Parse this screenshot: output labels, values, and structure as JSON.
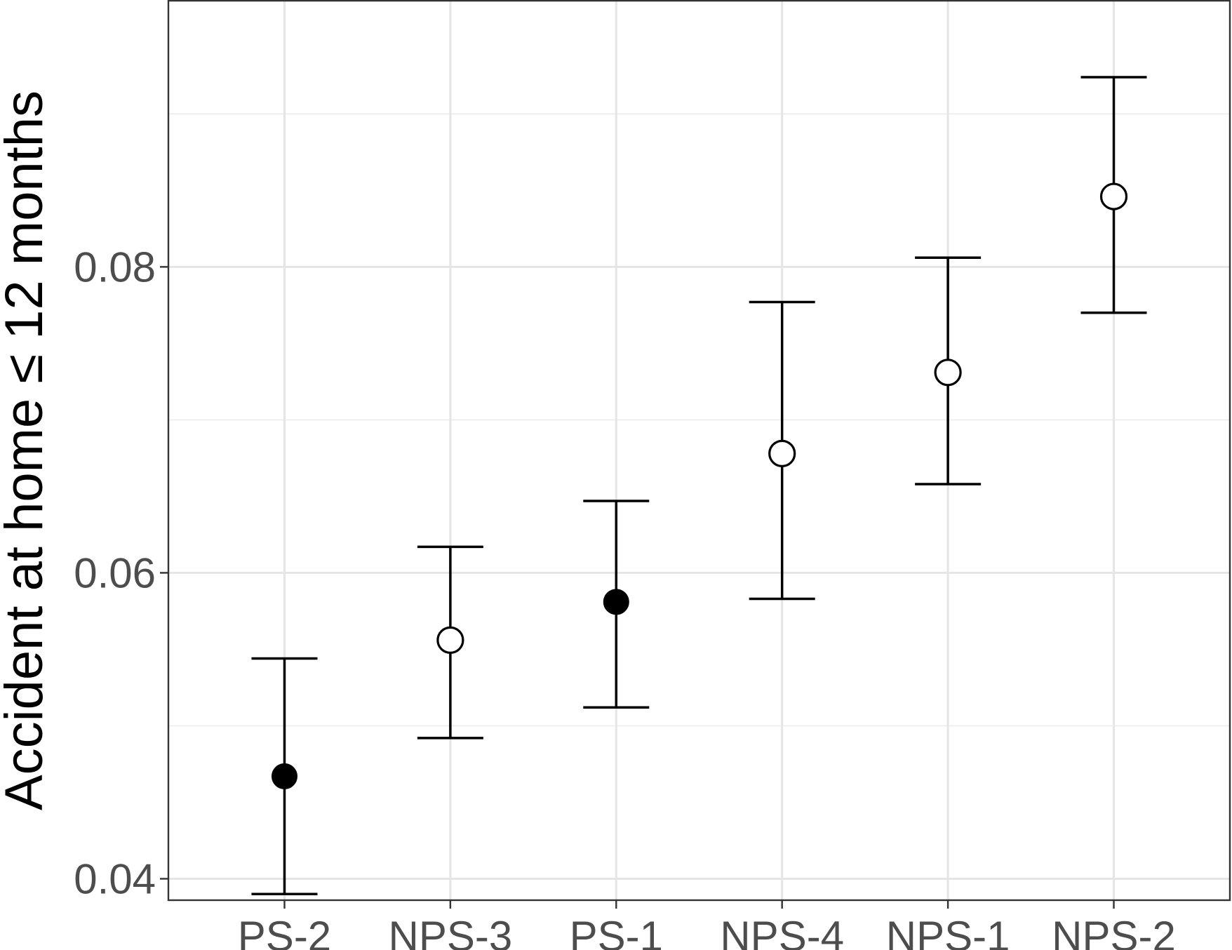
{
  "chart_data": {
    "type": "scatter",
    "subtype": "point-with-error-bars",
    "title": "",
    "xlabel": "",
    "ylabel": "Accident at home ≤ 12 months",
    "categories": [
      "PS-2",
      "NPS-3",
      "PS-1",
      "NPS-4",
      "NPS-1",
      "NPS-2"
    ],
    "points": [
      {
        "category": "PS-2",
        "value": 0.0467,
        "lower": 0.039,
        "upper": 0.0544,
        "marker": "filled"
      },
      {
        "category": "NPS-3",
        "value": 0.0556,
        "lower": 0.0492,
        "upper": 0.0617,
        "marker": "open"
      },
      {
        "category": "PS-1",
        "value": 0.0581,
        "lower": 0.0512,
        "upper": 0.0647,
        "marker": "filled"
      },
      {
        "category": "NPS-4",
        "value": 0.0678,
        "lower": 0.0583,
        "upper": 0.0777,
        "marker": "open"
      },
      {
        "category": "NPS-1",
        "value": 0.0731,
        "lower": 0.0658,
        "upper": 0.0806,
        "marker": "open"
      },
      {
        "category": "NPS-2",
        "value": 0.0846,
        "lower": 0.077,
        "upper": 0.0924,
        "marker": "open"
      }
    ],
    "y_ticks": [
      0.04,
      0.06,
      0.08
    ],
    "y_tick_labels": [
      "0.04",
      "0.06",
      "0.08"
    ],
    "y_minor_ticks": [
      0.05,
      0.07,
      0.09
    ],
    "ylim": [
      0.0386,
      0.0974
    ],
    "grid": true,
    "legend": "none",
    "colors": {
      "marker": "#000000",
      "grid": "#ebebeb",
      "border": "#333333",
      "tick_label": "#4d4d4d"
    }
  }
}
